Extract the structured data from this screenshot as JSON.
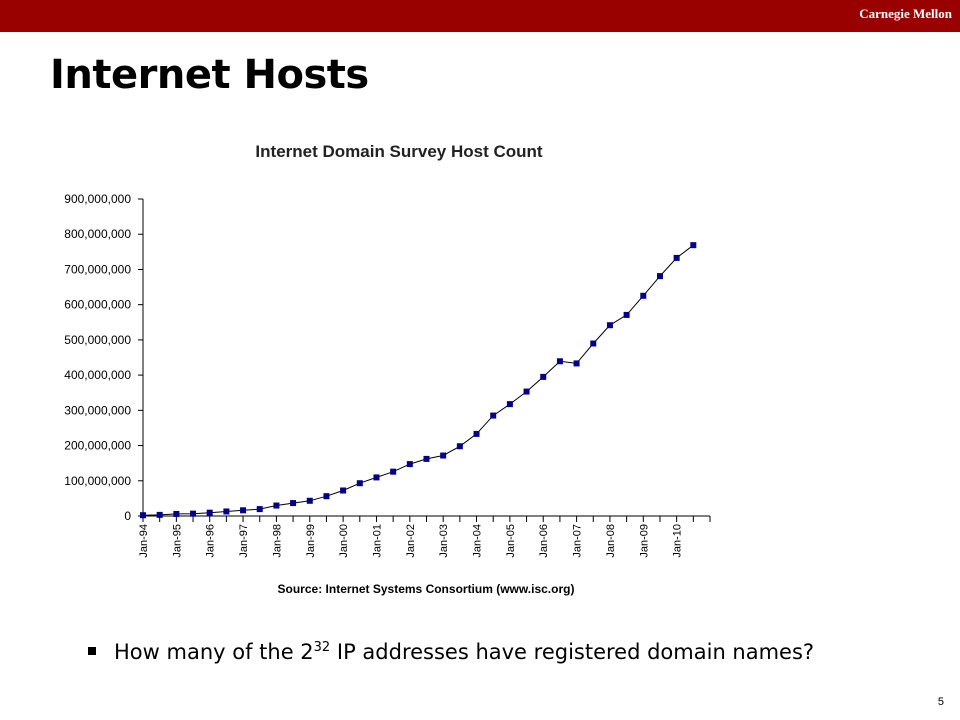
{
  "header": {
    "brand": "Carnegie Mellon",
    "bar_color": "#990000"
  },
  "slide": {
    "title": "Internet Hosts",
    "page_number": "5"
  },
  "bullet": {
    "prefix": "How many of the 2",
    "superscript": "32",
    "suffix": " IP addresses have registered domain names?"
  },
  "chart_data": {
    "type": "line",
    "title": "Internet Domain Survey Host Count",
    "source": "Source: Internet Systems Consortium (www.isc.org)",
    "ylim": [
      0,
      900000000
    ],
    "yticks": [
      0,
      100000000,
      200000000,
      300000000,
      400000000,
      500000000,
      600000000,
      700000000,
      800000000,
      900000000
    ],
    "ytick_labels": [
      "0",
      "100,000,000",
      "200,000,000",
      "300,000,000",
      "400,000,000",
      "500,000,000",
      "600,000,000",
      "700,000,000",
      "800,000,000",
      "900,000,000"
    ],
    "x_tick_labels": [
      "Jan-94",
      "Jan-95",
      "Jan-96",
      "Jan-97",
      "Jan-98",
      "Jan-99",
      "Jan-00",
      "Jan-01",
      "Jan-02",
      "Jan-03",
      "Jan-04",
      "Jan-05",
      "Jan-06",
      "Jan-07",
      "Jan-08",
      "Jan-09",
      "Jan-10"
    ],
    "x": [
      "Jan-94",
      "Jul-94",
      "Jan-95",
      "Jul-95",
      "Jan-96",
      "Jul-96",
      "Jan-97",
      "Jul-97",
      "Jan-98",
      "Jul-98",
      "Jan-99",
      "Jul-99",
      "Jan-00",
      "Jul-00",
      "Jan-01",
      "Jul-01",
      "Jan-02",
      "Jul-02",
      "Jan-03",
      "Jul-03",
      "Jan-04",
      "Jul-04",
      "Jan-05",
      "Jul-05",
      "Jan-06",
      "Jul-06",
      "Jan-07",
      "Jul-07",
      "Jan-08",
      "Jul-08",
      "Jan-09",
      "Jul-09",
      "Jan-10",
      "Jul-10"
    ],
    "values": [
      2217000,
      3212000,
      5846000,
      6642000,
      9472000,
      12881000,
      16146000,
      19540000,
      29670000,
      36739000,
      43230000,
      56218000,
      72398000,
      93047000,
      109574000,
      125888000,
      147345000,
      162128000,
      171638000,
      198000000,
      233101000,
      285139000,
      317646000,
      353284000,
      394992000,
      439286000,
      433193000,
      489774000,
      541677000,
      570937000,
      625226000,
      681064000,
      732740000,
      768913000
    ],
    "marker_color": "#00008b",
    "line_color": "#000000",
    "grid": false
  }
}
